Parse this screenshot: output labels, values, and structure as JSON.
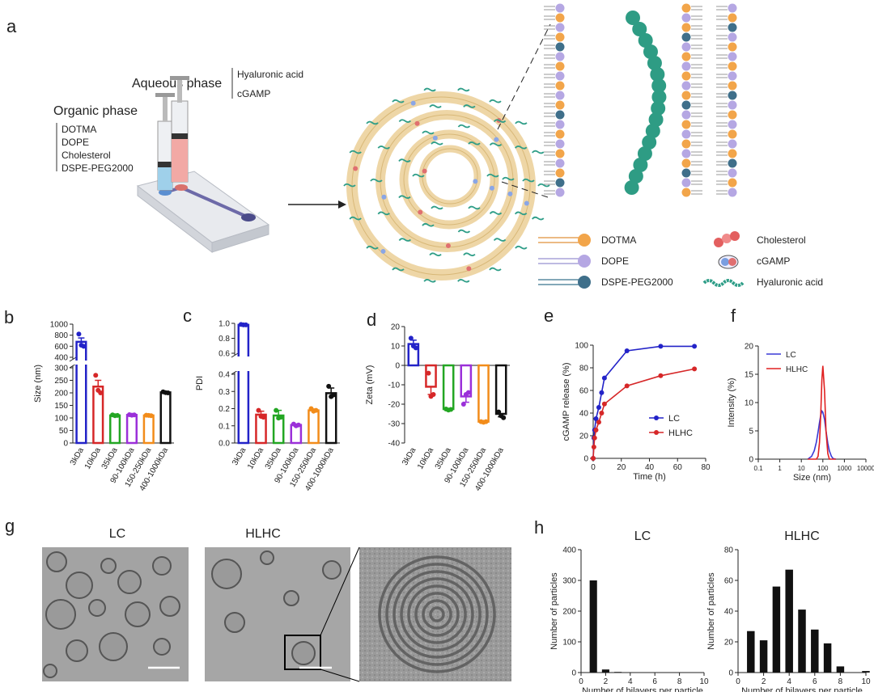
{
  "panels": [
    "a",
    "b",
    "c",
    "d",
    "e",
    "f",
    "g",
    "h"
  ],
  "diagram": {
    "organic_phase": {
      "title": "Organic phase",
      "components": [
        "DOTMA",
        "DOPE",
        "Cholesterol",
        "DSPE-PEG2000"
      ]
    },
    "aqueous_phase": {
      "title": "Aqueous phase",
      "components": [
        "Hyaluronic acid",
        "cGAMP"
      ]
    },
    "legend": [
      "DOTMA",
      "DOPE",
      "DSPE-PEG2000",
      "Cholesterol",
      "cGAMP",
      "Hyaluronic acid"
    ]
  },
  "micrographs": {
    "titles": [
      "LC",
      "HLHC"
    ]
  },
  "chart_data": [
    {
      "type": "bar",
      "ylabel": "Size (nm)",
      "categories": [
        "3kDa",
        "10kDa",
        "35kDa",
        "90-100kDa",
        "150-250kDa",
        "400-1000kDa"
      ],
      "values": [
        680,
        225,
        110,
        112,
        110,
        202
      ],
      "errors": [
        70,
        25,
        2,
        2,
        2,
        3
      ],
      "points": [
        [
          820,
          620,
          600
        ],
        [
          270,
          210,
          200
        ],
        [
          112,
          109,
          110
        ],
        [
          113,
          111,
          112
        ],
        [
          111,
          110,
          109
        ],
        [
          204,
          201,
          200
        ]
      ],
      "colors": [
        "#2323c8",
        "#d62728",
        "#23a623",
        "#9b30d9",
        "#f28c1a",
        "#111111"
      ],
      "ylim": [
        0,
        1000
      ],
      "axis_break": [
        300,
        400
      ],
      "yticks": [
        0,
        50,
        100,
        150,
        200,
        250,
        300,
        400,
        600,
        800,
        1000
      ]
    },
    {
      "type": "bar",
      "ylabel": "PDI",
      "categories": [
        "3kDa",
        "10kDa",
        "35kDa",
        "90-100kDa",
        "150-250kDa",
        "400-1000kDa"
      ],
      "values": [
        0.98,
        0.165,
        0.16,
        0.105,
        0.19,
        0.29
      ],
      "errors": [
        0.005,
        0.02,
        0.03,
        0.005,
        0.008,
        0.03
      ],
      "points": [
        [
          0.985,
          0.98,
          0.98
        ],
        [
          0.19,
          0.155,
          0.15
        ],
        [
          0.19,
          0.145,
          0.15
        ],
        [
          0.11,
          0.1,
          0.105
        ],
        [
          0.2,
          0.185,
          0.19
        ],
        [
          0.33,
          0.27,
          0.28
        ]
      ],
      "colors": [
        "#2323c8",
        "#d62728",
        "#23a623",
        "#9b30d9",
        "#f28c1a",
        "#111111"
      ],
      "ylim": [
        0,
        1
      ],
      "axis_break": [
        0.4,
        0.6
      ],
      "yticks": [
        {
          "value": 0,
          "label": "0.0"
        },
        0.1,
        0.2,
        0.3,
        0.4,
        0.6,
        0.8,
        {
          "value": 1,
          "label": "1.0"
        }
      ]
    },
    {
      "type": "bar",
      "ylabel": "Zeta (mV)",
      "categories": [
        "3kDa",
        "10kDa",
        "35kDa",
        "90-100kDa",
        "150-250kDa",
        "400-1000kDa"
      ],
      "values": [
        11,
        -11,
        -22.5,
        -16,
        -29,
        -25
      ],
      "errors": [
        2,
        4,
        0.3,
        3,
        0.5,
        1.5
      ],
      "points": [
        [
          14,
          10,
          9
        ],
        [
          -4,
          -16,
          -15
        ],
        [
          -22.5,
          -23,
          -22.7
        ],
        [
          -20,
          -15,
          -14
        ],
        [
          -29,
          -29.3,
          -29
        ],
        [
          -24,
          -26,
          -27
        ]
      ],
      "colors": [
        "#2323c8",
        "#d62728",
        "#23a623",
        "#9b30d9",
        "#f28c1a",
        "#111111"
      ],
      "ylim": [
        -40,
        20
      ],
      "yticks": [
        -40,
        -30,
        -20,
        -10,
        0,
        10,
        20
      ]
    },
    {
      "type": "line",
      "xlabel": "Time (h)",
      "ylabel": "cGAMP release (%)",
      "x": [
        0,
        0.5,
        1,
        2,
        4,
        6,
        8,
        24,
        48,
        72
      ],
      "series": [
        {
          "name": "LC",
          "color": "#2323c8",
          "values": [
            0,
            18,
            25,
            35,
            45,
            58,
            71,
            95,
            99,
            99
          ]
        },
        {
          "name": "HLHC",
          "color": "#d62728",
          "values": [
            0,
            10,
            18,
            25,
            32,
            40,
            48,
            64,
            73,
            79
          ]
        }
      ],
      "markers": true,
      "xlim": [
        0,
        80
      ],
      "xticks": [
        0,
        20,
        40,
        60,
        80
      ],
      "ylim": [
        0,
        100
      ],
      "yticks": [
        0,
        20,
        40,
        60,
        80,
        100
      ],
      "legend": "lower right"
    },
    {
      "type": "line",
      "xlabel": "Size (nm)",
      "ylabel": "Intensity (%)",
      "x": [
        20,
        30,
        40,
        50,
        60,
        70,
        80,
        90,
        100,
        120,
        140,
        170,
        200,
        250,
        300,
        400
      ],
      "series": [
        {
          "name": "LC",
          "color": "#3a3ad6",
          "values": [
            0,
            0.5,
            1.5,
            3,
            4.8,
            6.5,
            7.8,
            8.5,
            8.3,
            7,
            5,
            2.8,
            1.5,
            0.5,
            0.1,
            0
          ]
        },
        {
          "name": "HLHC",
          "color": "#e02020",
          "values": [
            0,
            0,
            0,
            0,
            0.5,
            3,
            8,
            14,
            16.5,
            12,
            5,
            1,
            0,
            0,
            0,
            0
          ]
        }
      ],
      "markers": false,
      "xlog": true,
      "xlim": [
        0.1,
        10000
      ],
      "xticks": [
        0.1,
        1,
        10,
        100,
        1000,
        10000
      ],
      "ylim": [
        0,
        20
      ],
      "yticks": [
        0,
        5,
        10,
        15,
        20
      ],
      "legend": "upper left"
    },
    {
      "type": "bar",
      "title": "LC",
      "xlabel": "Number of bilayers per particle",
      "ylabel": "Number of particles",
      "x": [
        1,
        2,
        3,
        4,
        5,
        6,
        7,
        8,
        9,
        10
      ],
      "values": [
        300,
        10,
        2,
        0,
        0,
        0,
        0,
        0,
        0,
        0
      ],
      "color": "#111111",
      "xlim": [
        0,
        10
      ],
      "xticks": [
        0,
        2,
        4,
        6,
        8,
        10
      ],
      "ylim": [
        0,
        400
      ],
      "yticks": [
        0,
        100,
        200,
        300,
        400
      ]
    },
    {
      "type": "bar",
      "title": "HLHC",
      "xlabel": "Number of bilayers per particle",
      "ylabel": "Number of particles",
      "x": [
        1,
        2,
        3,
        4,
        5,
        6,
        7,
        8,
        9,
        10
      ],
      "values": [
        27,
        21,
        56,
        67,
        41,
        28,
        19,
        4,
        0,
        1
      ],
      "color": "#111111",
      "xlim": [
        0,
        10
      ],
      "xticks": [
        0,
        2,
        4,
        6,
        8,
        10
      ],
      "ylim": [
        0,
        80
      ],
      "yticks": [
        0,
        20,
        40,
        60,
        80
      ]
    }
  ]
}
